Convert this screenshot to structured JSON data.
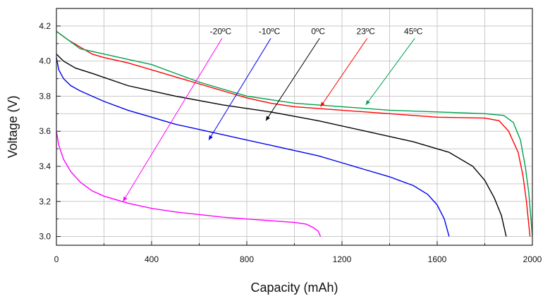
{
  "chart_data": {
    "type": "line",
    "title": "",
    "xlabel": "Capacity (mAh)",
    "ylabel": "Voltage (V)",
    "xlim": [
      0,
      2000
    ],
    "ylim": [
      2.95,
      4.3
    ],
    "grid": true,
    "x_ticks": [
      0,
      400,
      800,
      1200,
      1600,
      2000
    ],
    "x_tick_labels": [
      "0",
      "400",
      "800",
      "1200",
      "1600",
      "2000"
    ],
    "y_ticks": [
      3.0,
      3.2,
      3.4,
      3.6,
      3.8,
      4.0,
      4.2
    ],
    "y_tick_labels": [
      "3.0",
      "3.2",
      "3.4",
      "3.6",
      "3.8",
      "4.0",
      "4.2"
    ],
    "series": [
      {
        "name": "-20ºC",
        "color": "#ff00ff",
        "label_at": [
          690,
          4.17
        ],
        "pointer_to": [
          280,
          3.2
        ],
        "points": [
          [
            0,
            3.6
          ],
          [
            10,
            3.52
          ],
          [
            30,
            3.44
          ],
          [
            60,
            3.37
          ],
          [
            100,
            3.31
          ],
          [
            150,
            3.26
          ],
          [
            200,
            3.23
          ],
          [
            300,
            3.19
          ],
          [
            400,
            3.16
          ],
          [
            500,
            3.14
          ],
          [
            600,
            3.125
          ],
          [
            700,
            3.11
          ],
          [
            800,
            3.1
          ],
          [
            900,
            3.09
          ],
          [
            1000,
            3.08
          ],
          [
            1050,
            3.07
          ],
          [
            1080,
            3.05
          ],
          [
            1100,
            3.03
          ],
          [
            1110,
            3.0
          ]
        ]
      },
      {
        "name": "-10ºC",
        "color": "#0000ee",
        "label_at": [
          895,
          4.17
        ],
        "pointer_to": [
          640,
          3.55
        ],
        "points": [
          [
            0,
            4.02
          ],
          [
            10,
            3.95
          ],
          [
            30,
            3.9
          ],
          [
            60,
            3.86
          ],
          [
            100,
            3.83
          ],
          [
            200,
            3.77
          ],
          [
            300,
            3.72
          ],
          [
            400,
            3.68
          ],
          [
            500,
            3.64
          ],
          [
            600,
            3.61
          ],
          [
            700,
            3.58
          ],
          [
            800,
            3.55
          ],
          [
            900,
            3.52
          ],
          [
            1000,
            3.49
          ],
          [
            1100,
            3.46
          ],
          [
            1200,
            3.42
          ],
          [
            1300,
            3.38
          ],
          [
            1400,
            3.34
          ],
          [
            1500,
            3.29
          ],
          [
            1560,
            3.24
          ],
          [
            1600,
            3.18
          ],
          [
            1630,
            3.1
          ],
          [
            1650,
            3.0
          ]
        ]
      },
      {
        "name": "0ºC",
        "color": "#000000",
        "label_at": [
          1100,
          4.17
        ],
        "pointer_to": [
          880,
          3.66
        ],
        "points": [
          [
            0,
            4.04
          ],
          [
            30,
            4.0
          ],
          [
            80,
            3.96
          ],
          [
            150,
            3.93
          ],
          [
            300,
            3.86
          ],
          [
            500,
            3.8
          ],
          [
            700,
            3.75
          ],
          [
            900,
            3.71
          ],
          [
            1100,
            3.66
          ],
          [
            1300,
            3.6
          ],
          [
            1500,
            3.54
          ],
          [
            1650,
            3.48
          ],
          [
            1750,
            3.4
          ],
          [
            1800,
            3.32
          ],
          [
            1840,
            3.22
          ],
          [
            1870,
            3.12
          ],
          [
            1890,
            3.0
          ]
        ]
      },
      {
        "name": "23ºC",
        "color": "#ff0000",
        "label_at": [
          1300,
          4.17
        ],
        "pointer_to": [
          1110,
          3.74
        ],
        "points": [
          [
            0,
            4.17
          ],
          [
            50,
            4.12
          ],
          [
            100,
            4.08
          ],
          [
            150,
            4.04
          ],
          [
            200,
            4.02
          ],
          [
            300,
            3.99
          ],
          [
            400,
            3.95
          ],
          [
            500,
            3.91
          ],
          [
            600,
            3.87
          ],
          [
            700,
            3.83
          ],
          [
            800,
            3.79
          ],
          [
            900,
            3.76
          ],
          [
            1000,
            3.74
          ],
          [
            1200,
            3.72
          ],
          [
            1400,
            3.7
          ],
          [
            1600,
            3.68
          ],
          [
            1800,
            3.675
          ],
          [
            1860,
            3.66
          ],
          [
            1900,
            3.6
          ],
          [
            1940,
            3.48
          ],
          [
            1960,
            3.35
          ],
          [
            1975,
            3.2
          ],
          [
            1990,
            3.0
          ]
        ]
      },
      {
        "name": "45ºC",
        "color": "#00a050",
        "label_at": [
          1500,
          4.17
        ],
        "pointer_to": [
          1300,
          3.75
        ],
        "points": [
          [
            0,
            4.17
          ],
          [
            50,
            4.12
          ],
          [
            100,
            4.07
          ],
          [
            200,
            4.04
          ],
          [
            300,
            4.01
          ],
          [
            400,
            3.98
          ],
          [
            500,
            3.93
          ],
          [
            600,
            3.88
          ],
          [
            700,
            3.84
          ],
          [
            800,
            3.8
          ],
          [
            900,
            3.78
          ],
          [
            1000,
            3.76
          ],
          [
            1200,
            3.74
          ],
          [
            1400,
            3.72
          ],
          [
            1600,
            3.71
          ],
          [
            1800,
            3.7
          ],
          [
            1880,
            3.69
          ],
          [
            1920,
            3.65
          ],
          [
            1950,
            3.55
          ],
          [
            1970,
            3.4
          ],
          [
            1985,
            3.25
          ],
          [
            2000,
            3.0
          ]
        ]
      }
    ]
  }
}
